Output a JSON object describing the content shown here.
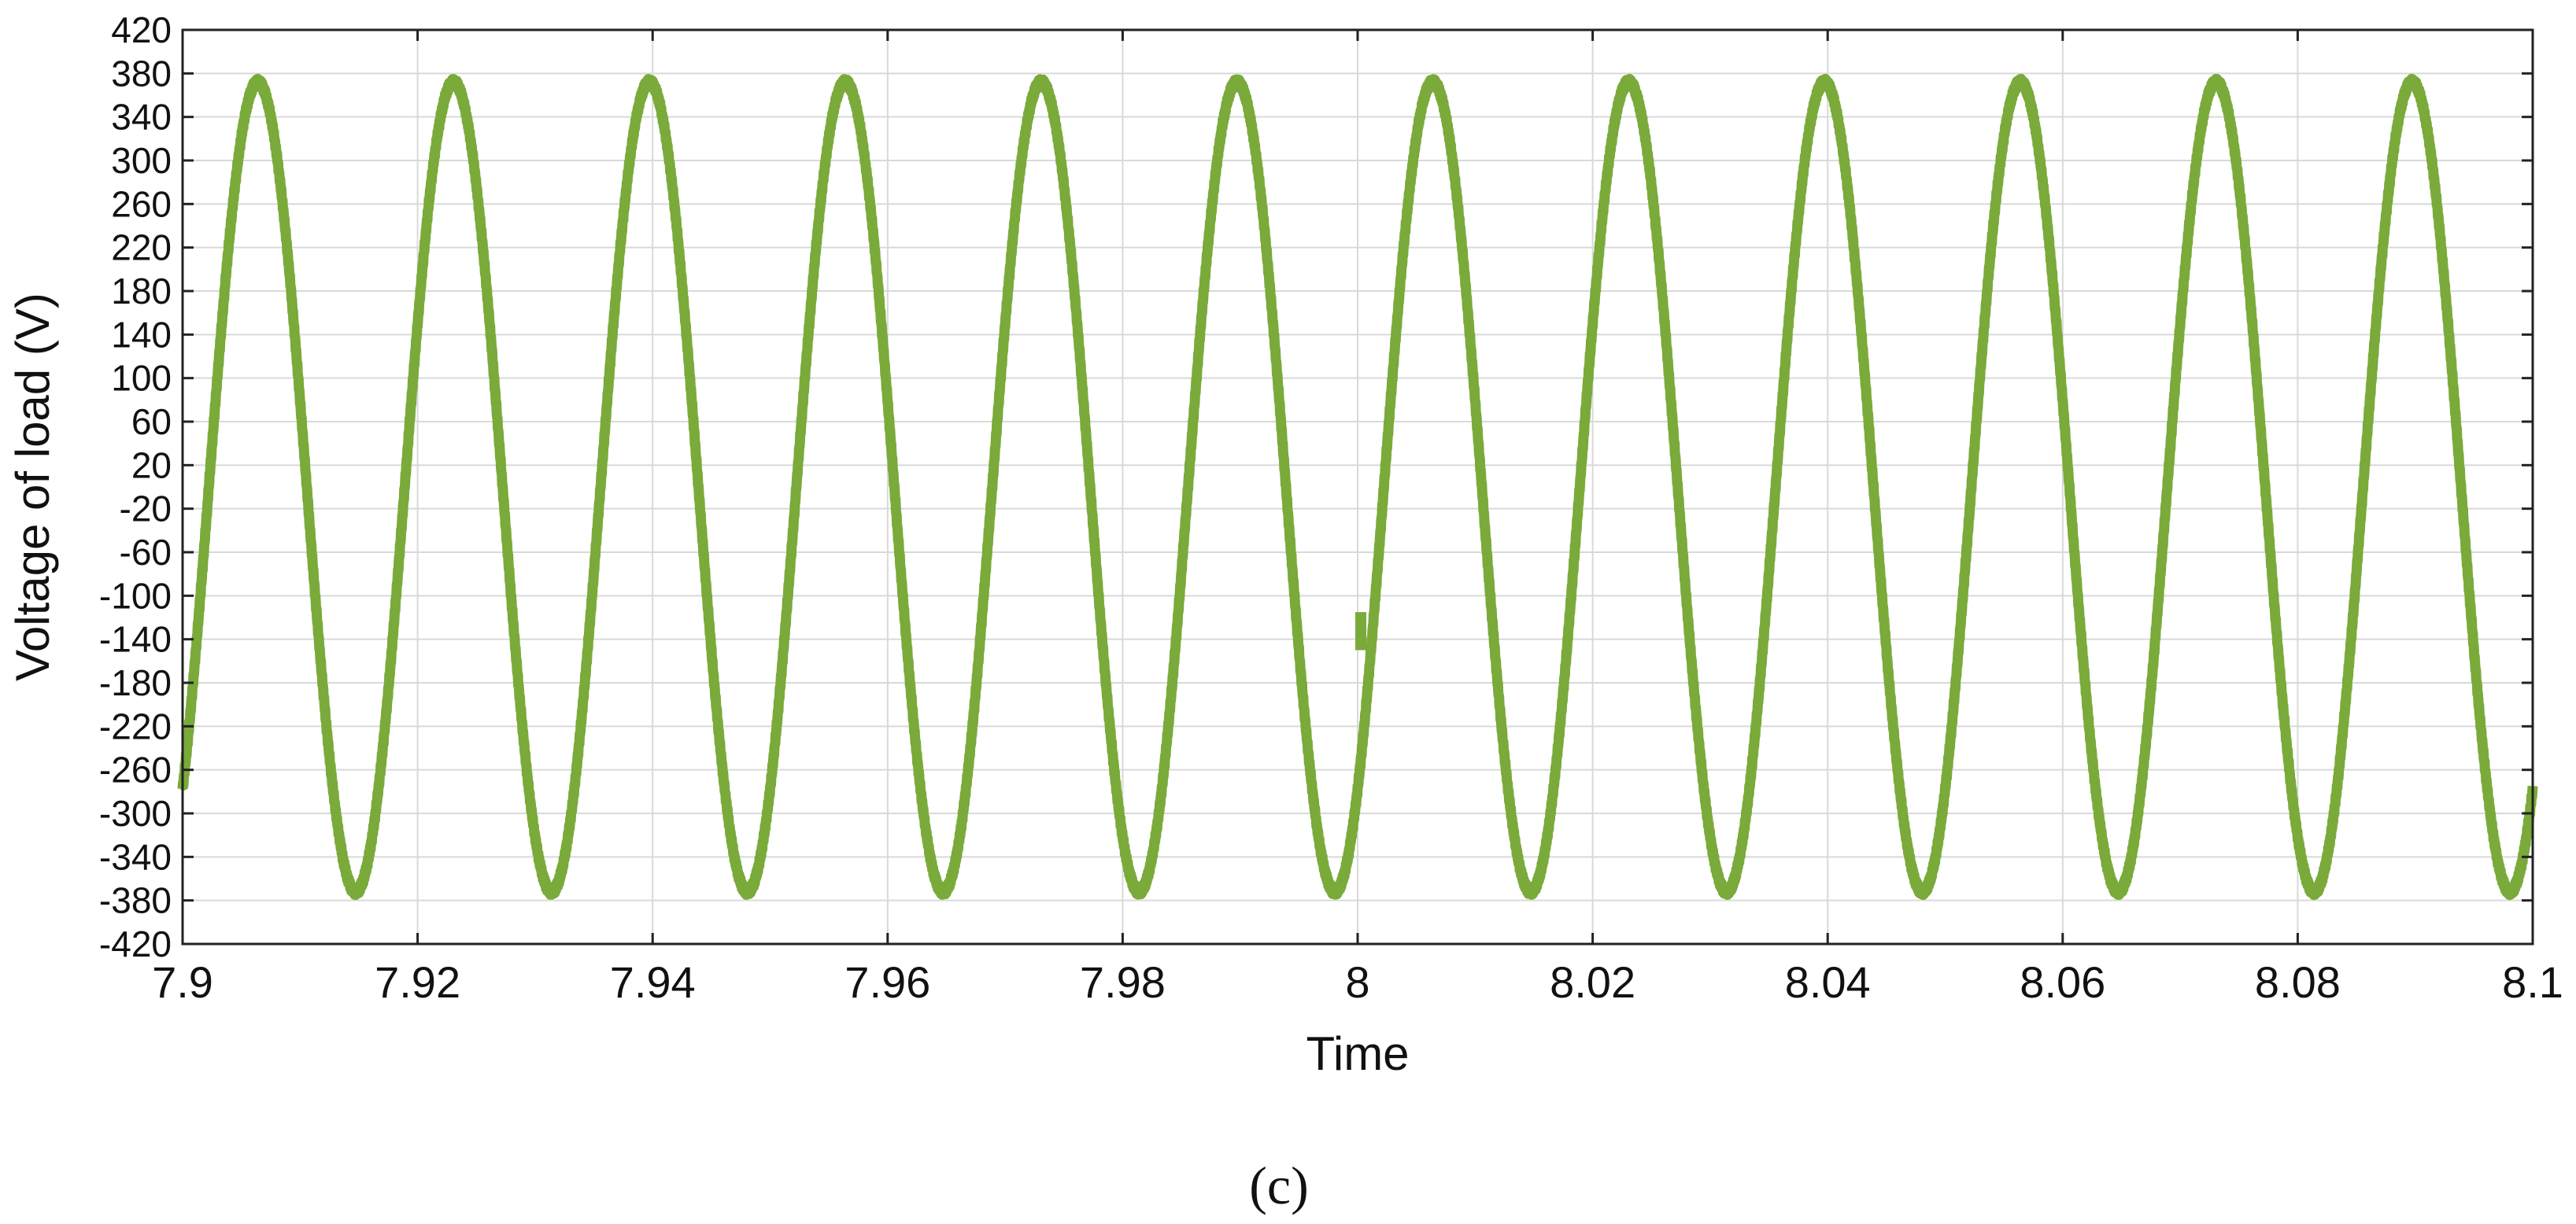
{
  "chart_data": {
    "type": "line",
    "xlabel": "Time",
    "ylabel": "Voltage of load (V)",
    "xlim": [
      7.9,
      8.1
    ],
    "ylim": [
      -420,
      420
    ],
    "x_ticks": [
      "7.9",
      "7.92",
      "7.94",
      "7.96",
      "7.98",
      "8",
      "8.02",
      "8.04",
      "8.06",
      "8.08",
      "8.1"
    ],
    "y_ticks": [
      "420",
      "380",
      "340",
      "300",
      "260",
      "220",
      "180",
      "140",
      "100",
      "60",
      "20",
      "-20",
      "-60",
      "-100",
      "-140",
      "-180",
      "-220",
      "-260",
      "-300",
      "-340",
      "-380",
      "-420"
    ],
    "grid": true,
    "series": [
      {
        "color": "#7aaa3a",
        "amplitude": 372,
        "frequency_hz": 60,
        "peak_times": [
          7.9064,
          7.923,
          7.9397,
          7.9564,
          7.973,
          7.9897,
          8.0064,
          8.023,
          8.0397,
          8.0564,
          8.073,
          8.0897
        ],
        "trough_times": [
          7.9147,
          7.9314,
          7.948,
          7.9647,
          7.9814,
          7.998,
          8.0147,
          8.0314,
          8.048,
          8.0647,
          8.0814,
          8.098
        ],
        "disturbance": {
          "x": 8.0,
          "y_range": [
            -150,
            -115
          ]
        }
      }
    ]
  },
  "panel_label": "(c)",
  "colors": {
    "line": "#7aaa3a",
    "grid": "#d9d9d9",
    "axis": "#222222"
  }
}
